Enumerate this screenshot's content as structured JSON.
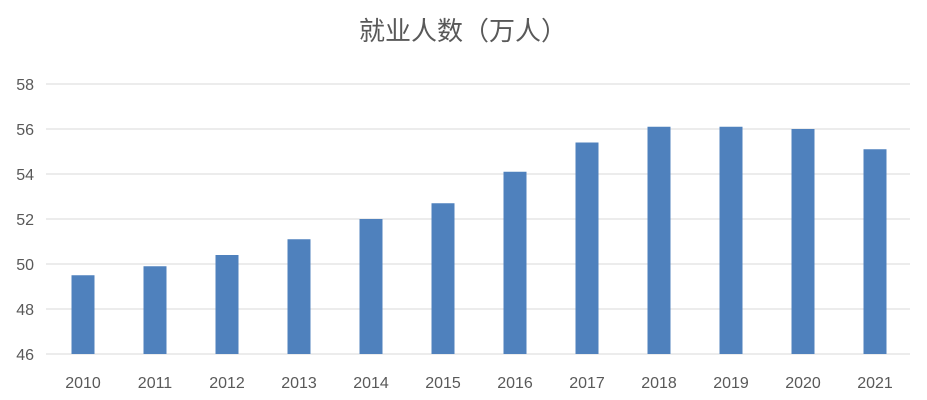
{
  "chart_data": {
    "type": "bar",
    "title": "就业人数（万人）",
    "xlabel": "",
    "ylabel": "",
    "categories": [
      "2010",
      "2011",
      "2012",
      "2013",
      "2014",
      "2015",
      "2016",
      "2017",
      "2018",
      "2019",
      "2020",
      "2021"
    ],
    "values": [
      49.5,
      49.9,
      50.4,
      51.1,
      52.0,
      52.7,
      54.1,
      55.4,
      56.1,
      56.1,
      56.0,
      55.1
    ],
    "ylim": [
      46,
      58
    ],
    "yticks": [
      "46",
      "48",
      "50",
      "52",
      "54",
      "56",
      "58"
    ],
    "grid": true,
    "legend": "none",
    "colors": {
      "bar": "#4f81bd",
      "grid": "#d9d9d9",
      "text": "#595959"
    }
  }
}
